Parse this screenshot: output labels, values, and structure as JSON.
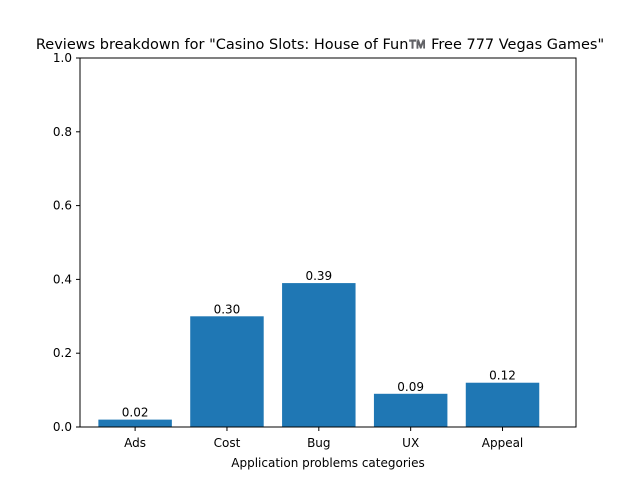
{
  "chart_data": {
    "type": "bar",
    "title": "Reviews breakdown for \"Casino Slots: House of Fun™️ Free 777 Vegas Games\"",
    "xlabel": "Application problems categories",
    "ylabel": "",
    "categories": [
      "Ads",
      "Cost",
      "Bug",
      "UX",
      "Appeal"
    ],
    "values": [
      0.02,
      0.3,
      0.39,
      0.09,
      0.12
    ],
    "value_labels": [
      "0.02",
      "0.30",
      "0.39",
      "0.09",
      "0.12"
    ],
    "ylim": [
      0,
      1.0
    ],
    "yticks": [
      "0.0",
      "0.2",
      "0.4",
      "0.6",
      "0.8",
      "1.0"
    ],
    "grid": false,
    "bar_color": "#1f77b4"
  }
}
